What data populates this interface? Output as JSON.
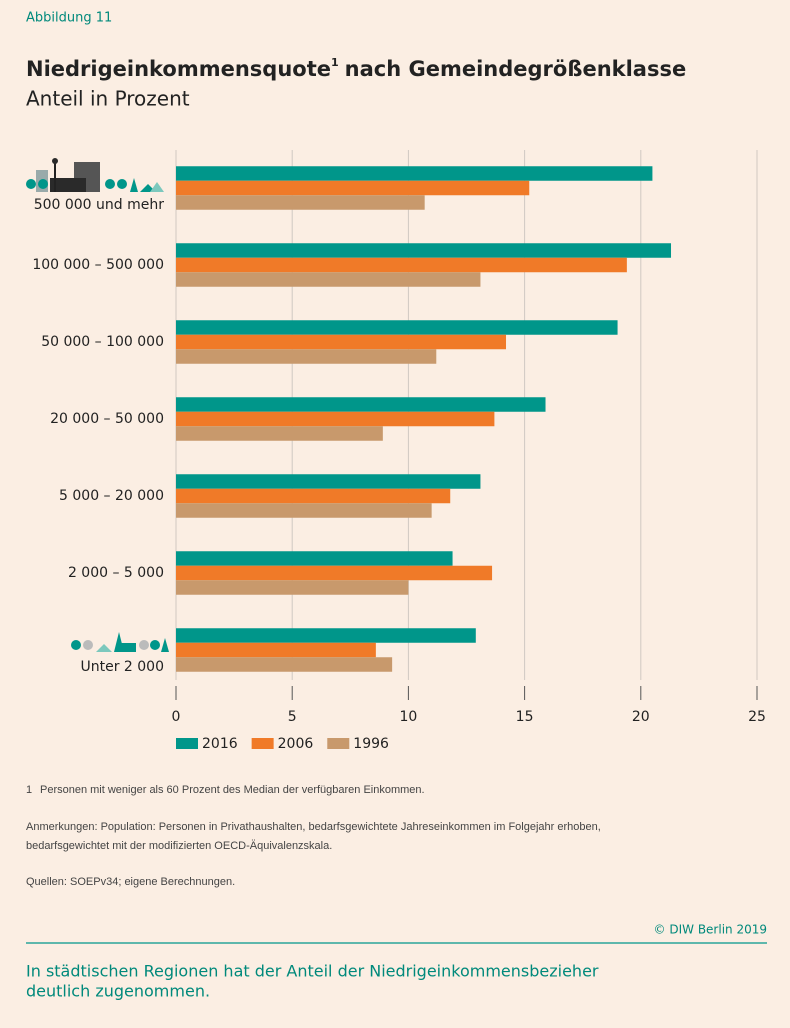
{
  "figure_label": "Abbildung 11",
  "chart_data": {
    "type": "bar",
    "orientation": "horizontal",
    "title": "Niedrigeinkommensquote",
    "title_mark": "1",
    "title_suffix": "nach Gemeindegrößenklasse",
    "subtitle": "Anteil in Prozent",
    "categories": [
      "500 000 und mehr",
      "100 000 – 500 000",
      "50 000 – 100 000",
      "20 000 – 50 000",
      "5 000 – 20 000",
      "2 000 – 5 000",
      "Unter 2 000"
    ],
    "series": [
      {
        "name": "2016",
        "color": "#00968a",
        "values": [
          20.5,
          21.3,
          19.0,
          15.9,
          13.1,
          11.9,
          12.9
        ]
      },
      {
        "name": "2006",
        "color": "#f07a28",
        "values": [
          15.2,
          19.4,
          14.2,
          13.7,
          11.8,
          13.6,
          8.6
        ]
      },
      {
        "name": "1996",
        "color": "#c8996c",
        "values": [
          10.7,
          13.1,
          11.2,
          8.9,
          11.0,
          10.0,
          9.3
        ]
      }
    ],
    "xlim": [
      0,
      25
    ],
    "xticks": [
      0,
      5,
      10,
      15,
      20,
      25
    ],
    "grid": true,
    "legend": "bottom"
  },
  "footnote": {
    "mark": "1",
    "text": "Personen mit weniger als 60 Prozent des Median der verfügbaren Einkommen."
  },
  "remarks": [
    "Anmerkungen: Population: Personen in Privathaushalten, bedarfsgewichtete Jahreseinkommen im Folgejahr erhoben,",
    "bedarfsgewichtet mit der modifizierten OECD-Äquivalenzskala."
  ],
  "sources": "Quellen: SOEPv34; eigene Berechnungen.",
  "copyright": "© DIW Berlin 2019",
  "summary": [
    "In städtischen Regionen hat der Anteil der Niedrigeinkommensbezieher",
    "deutlich zugenommen."
  ]
}
